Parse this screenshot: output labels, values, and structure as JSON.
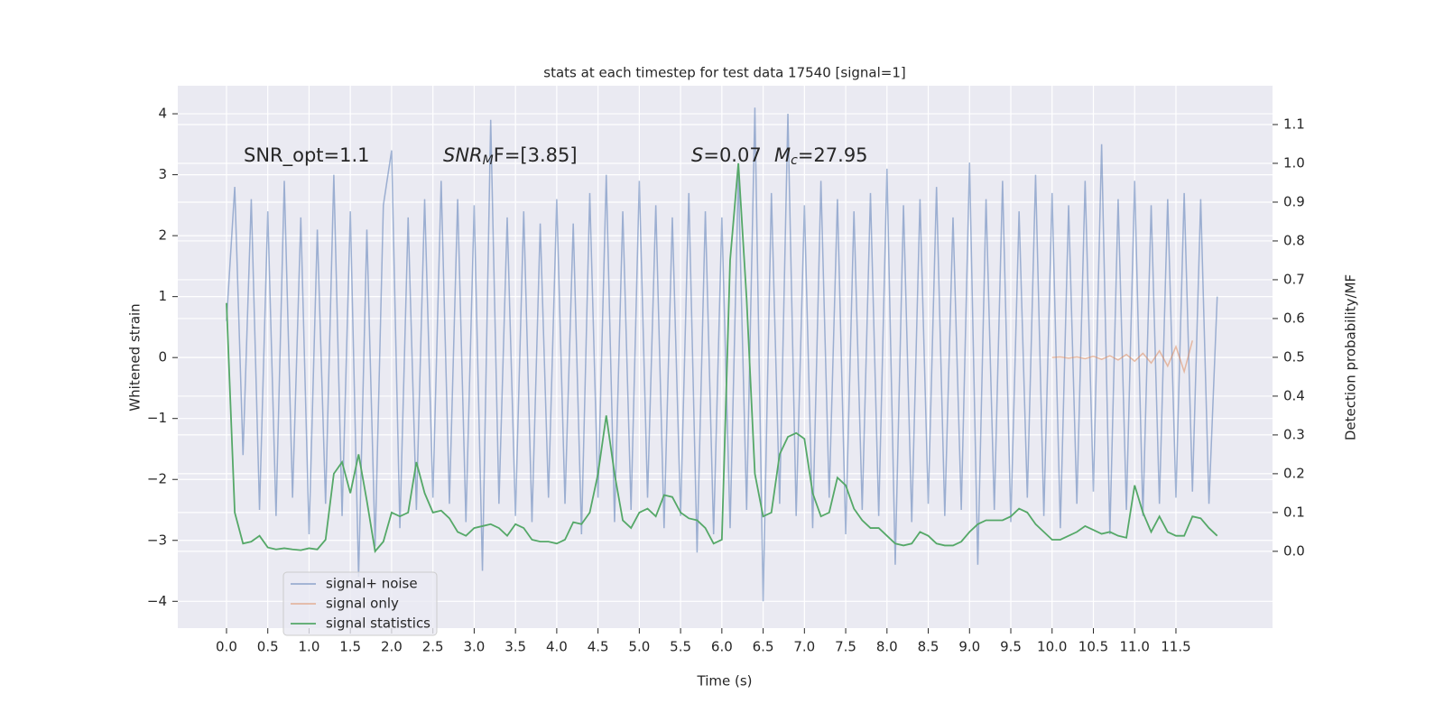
{
  "chart_data": {
    "type": "line",
    "title": "stats at each timestep for test data 17540 [signal=1]",
    "xlabel": "Time (s)",
    "ylabel": "Whitened strain",
    "y2label": "Detection probability/MF",
    "annotations": [
      {
        "main": "SNR_opt=1.1"
      },
      {
        "main": "SNR",
        "sub": "M",
        "rest": "F=[3.85]"
      },
      {
        "main": "S",
        "rest": "=0.07"
      },
      {
        "main": "M",
        "sub": "c",
        "rest": "=27.95"
      }
    ],
    "xlim": [
      -0.59,
      12.67
    ],
    "ylim": [
      -4.44,
      4.46
    ],
    "y2lim": [
      -0.198,
      1.2
    ],
    "xticks": [
      {
        "value": 0,
        "label": "0.0"
      },
      0.5,
      {
        "value": 1,
        "label": "1.0"
      },
      1.5,
      {
        "value": 2,
        "label": "2.0"
      },
      2.5,
      {
        "value": 3,
        "label": "3.0"
      },
      3.5,
      {
        "value": 4,
        "label": "4.0"
      },
      4.5,
      {
        "value": 5,
        "label": "5.0"
      },
      5.5,
      {
        "value": 6,
        "label": "6.0"
      },
      6.5,
      {
        "value": 7,
        "label": "7.0"
      },
      7.5,
      {
        "value": 8,
        "label": "8.0"
      },
      8.5,
      {
        "value": 9,
        "label": "9.0"
      },
      9.5,
      {
        "value": 10,
        "label": "10.0"
      },
      10.5,
      {
        "value": 11,
        "label": "11.0"
      },
      11.5
    ],
    "yticks": [
      {
        "value": -4,
        "label": "−4"
      },
      {
        "value": -3,
        "label": "−3"
      },
      {
        "value": -2,
        "label": "−2"
      },
      {
        "value": -1,
        "label": "−1"
      },
      0,
      1,
      2,
      3,
      4
    ],
    "y2ticks": [
      {
        "value": 0,
        "label": "0.0"
      },
      0.1,
      0.2,
      0.3,
      0.4,
      0.5,
      0.6,
      0.7,
      0.8,
      0.9,
      {
        "value": 1,
        "label": "1.0"
      },
      1.1
    ],
    "grid": true,
    "legend": "lower left",
    "series": [
      {
        "name": "signal+ noise",
        "color": "#4c72b0",
        "opacity": 0.5,
        "x": [
          0,
          0.1,
          0.2,
          0.3,
          0.4,
          0.5,
          0.6,
          0.7,
          0.8,
          0.9,
          1,
          1.1,
          1.2,
          1.3,
          1.4,
          1.5,
          1.6,
          1.7,
          1.8,
          1.9,
          2,
          2.1,
          2.2,
          2.3,
          2.4,
          2.5,
          2.6,
          2.7,
          2.8,
          2.9,
          3,
          3.1,
          3.2,
          3.3,
          3.4,
          3.5,
          3.6,
          3.7,
          3.8,
          3.9,
          4,
          4.1,
          4.2,
          4.3,
          4.4,
          4.5,
          4.6,
          4.7,
          4.8,
          4.9,
          5,
          5.1,
          5.2,
          5.3,
          5.4,
          5.5,
          5.6,
          5.7,
          5.8,
          5.9,
          6,
          6.1,
          6.2,
          6.3,
          6.4,
          6.5,
          6.6,
          6.7,
          6.8,
          6.9,
          7,
          7.1,
          7.2,
          7.3,
          7.4,
          7.5,
          7.6,
          7.7,
          7.8,
          7.9,
          8,
          8.1,
          8.2,
          8.3,
          8.4,
          8.5,
          8.6,
          8.7,
          8.8,
          8.9,
          9,
          9.1,
          9.2,
          9.3,
          9.4,
          9.5,
          9.6,
          9.7,
          9.8,
          9.9,
          10,
          10.1,
          10.2,
          10.3,
          10.4,
          10.5,
          10.6,
          10.7,
          10.8,
          10.9,
          11,
          11.1,
          11.2,
          11.3,
          11.4,
          11.5,
          11.6,
          11.7,
          11.8,
          11.9,
          12
        ],
        "values": [
          0.6,
          2.8,
          -1.6,
          2.6,
          -2.5,
          2.4,
          -2.6,
          2.9,
          -2.3,
          2.3,
          -2.9,
          2.1,
          -2.4,
          3.0,
          -2.6,
          2.4,
          -3.6,
          2.1,
          -3.1,
          2.5,
          3.4,
          -2.8,
          2.3,
          -2.5,
          2.6,
          -2.3,
          2.9,
          -2.4,
          2.6,
          -2.7,
          2.5,
          -3.5,
          3.9,
          -2.4,
          2.3,
          -2.6,
          2.4,
          -2.7,
          2.2,
          -2.3,
          2.6,
          -2.4,
          2.2,
          -2.9,
          2.7,
          -2.3,
          3.0,
          -2.7,
          2.4,
          -2.5,
          2.9,
          -2.3,
          2.5,
          -2.8,
          2.3,
          -2.6,
          2.7,
          -3.2,
          2.4,
          -2.9,
          2.3,
          -2.8,
          3.0,
          -2.5,
          4.1,
          -4.0,
          2.7,
          -2.4,
          4.0,
          -2.6,
          2.5,
          -2.8,
          2.9,
          -2.3,
          2.6,
          -2.9,
          2.4,
          -2.5,
          2.7,
          -2.6,
          3.1,
          -3.4,
          2.5,
          -2.7,
          2.6,
          -2.4,
          2.8,
          -2.6,
          2.3,
          -2.5,
          3.2,
          -3.4,
          2.6,
          -2.5,
          2.9,
          -2.7,
          2.4,
          -2.3,
          3.0,
          -2.6,
          2.7,
          -2.8,
          2.5,
          -2.4,
          2.9,
          -2.2,
          3.5,
          -2.9,
          2.6,
          -2.5,
          2.9,
          -2.6,
          2.5,
          -2.4,
          2.6,
          -2.3,
          2.7,
          -2.2,
          2.6,
          -2.4,
          1.0
        ]
      },
      {
        "name": "signal only",
        "color": "#dd8452",
        "opacity": 0.5,
        "x": [
          10,
          10.1,
          10.2,
          10.3,
          10.4,
          10.5,
          10.6,
          10.7,
          10.8,
          10.9,
          11,
          11.1,
          11.2,
          11.3,
          11.4,
          11.5,
          11.6,
          11.7
        ],
        "values": [
          0,
          0.01,
          -0.01,
          0.01,
          -0.02,
          0.02,
          -0.03,
          0.03,
          -0.04,
          0.05,
          -0.06,
          0.07,
          -0.09,
          0.11,
          -0.14,
          0.18,
          -0.23,
          0.28
        ]
      },
      {
        "name": "signal statistics",
        "color": "#55a868",
        "opacity": 1,
        "axis": "y2",
        "x": [
          0,
          0.1,
          0.2,
          0.3,
          0.4,
          0.5,
          0.6,
          0.7,
          0.8,
          0.9,
          1,
          1.1,
          1.2,
          1.3,
          1.4,
          1.5,
          1.6,
          1.7,
          1.8,
          1.9,
          2,
          2.1,
          2.2,
          2.3,
          2.4,
          2.5,
          2.6,
          2.7,
          2.8,
          2.9,
          3,
          3.1,
          3.2,
          3.3,
          3.4,
          3.5,
          3.6,
          3.7,
          3.8,
          3.9,
          4,
          4.1,
          4.2,
          4.3,
          4.4,
          4.5,
          4.6,
          4.7,
          4.8,
          4.9,
          5,
          5.1,
          5.2,
          5.3,
          5.4,
          5.5,
          5.6,
          5.7,
          5.8,
          5.9,
          6,
          6.1,
          6.2,
          6.3,
          6.4,
          6.5,
          6.6,
          6.7,
          6.8,
          6.9,
          7,
          7.1,
          7.2,
          7.3,
          7.4,
          7.5,
          7.6,
          7.7,
          7.8,
          7.9,
          8,
          8.1,
          8.2,
          8.3,
          8.4,
          8.5,
          8.6,
          8.7,
          8.8,
          8.9,
          9,
          9.1,
          9.2,
          9.3,
          9.4,
          9.5,
          9.6,
          9.7,
          9.8,
          9.9,
          10,
          10.1,
          10.2,
          10.3,
          10.4,
          10.5,
          10.6,
          10.7,
          10.8,
          10.9,
          11,
          11.1,
          11.2,
          11.3,
          11.4,
          11.5,
          11.6,
          11.7,
          11.8,
          11.9,
          12
        ],
        "values": [
          0.64,
          0.1,
          0.02,
          0.025,
          0.04,
          0.01,
          0.005,
          0.008,
          0.005,
          0.003,
          0.008,
          0.005,
          0.03,
          0.2,
          0.23,
          0.15,
          0.25,
          0.13,
          0.0,
          0.025,
          0.1,
          0.09,
          0.1,
          0.23,
          0.15,
          0.1,
          0.105,
          0.085,
          0.05,
          0.04,
          0.06,
          0.065,
          0.07,
          0.06,
          0.04,
          0.07,
          0.06,
          0.03,
          0.025,
          0.025,
          0.02,
          0.03,
          0.075,
          0.07,
          0.1,
          0.2,
          0.35,
          0.2,
          0.08,
          0.06,
          0.1,
          0.11,
          0.09,
          0.145,
          0.14,
          0.1,
          0.085,
          0.08,
          0.06,
          0.02,
          0.03,
          0.75,
          1.0,
          0.65,
          0.2,
          0.09,
          0.1,
          0.25,
          0.295,
          0.305,
          0.29,
          0.15,
          0.09,
          0.1,
          0.19,
          0.17,
          0.11,
          0.08,
          0.06,
          0.06,
          0.04,
          0.02,
          0.015,
          0.02,
          0.05,
          0.04,
          0.02,
          0.015,
          0.015,
          0.025,
          0.05,
          0.07,
          0.08,
          0.08,
          0.08,
          0.09,
          0.11,
          0.1,
          0.07,
          0.05,
          0.03,
          0.03,
          0.04,
          0.05,
          0.065,
          0.055,
          0.045,
          0.05,
          0.04,
          0.035,
          0.17,
          0.1,
          0.05,
          0.09,
          0.05,
          0.04,
          0.04,
          0.09,
          0.085,
          0.06,
          0.04
        ]
      }
    ]
  }
}
